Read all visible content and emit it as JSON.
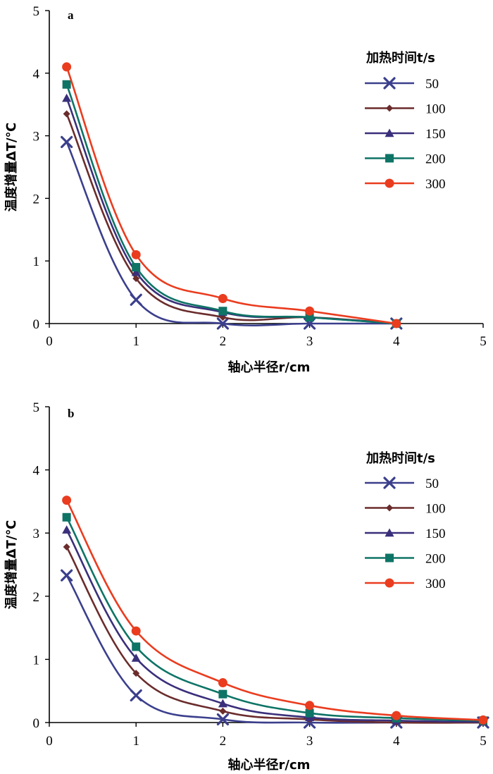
{
  "chart_data": [
    {
      "type": "line",
      "panel_label": "a",
      "xlabel": "轴心半径r/cm",
      "ylabel": "温度增量ΔT/℃",
      "xlim": [
        0,
        5
      ],
      "ylim": [
        0,
        5
      ],
      "xticks": [
        "0",
        "1",
        "2",
        "3",
        "4",
        "5"
      ],
      "yticks": [
        "0",
        "1",
        "2",
        "3",
        "4",
        "5"
      ],
      "grid": false,
      "legend_title": "加热时间t/s",
      "legend_position": "right",
      "x": [
        0.2,
        1,
        2,
        3,
        4
      ],
      "series": [
        {
          "name": "50",
          "color": "#3b3f8c",
          "marker": "x",
          "values": [
            2.9,
            0.38,
            0.0,
            0.0,
            0.0
          ]
        },
        {
          "name": "100",
          "color": "#6b2c2c",
          "marker": "diamond",
          "values": [
            3.35,
            0.72,
            0.1,
            0.1,
            0.0
          ]
        },
        {
          "name": "150",
          "color": "#3a2f7a",
          "marker": "triangle",
          "values": [
            3.6,
            0.82,
            0.18,
            0.1,
            0.0
          ]
        },
        {
          "name": "200",
          "color": "#0e7466",
          "marker": "square",
          "values": [
            3.82,
            0.9,
            0.2,
            0.1,
            0.0
          ]
        },
        {
          "name": "300",
          "color": "#ea3c1f",
          "marker": "circle",
          "values": [
            4.1,
            1.1,
            0.4,
            0.2,
            0.0
          ]
        }
      ]
    },
    {
      "type": "line",
      "panel_label": "b",
      "xlabel": "轴心半径r/cm",
      "ylabel": "温度增量ΔT/℃",
      "xlim": [
        0,
        5
      ],
      "ylim": [
        0,
        5
      ],
      "xticks": [
        "0",
        "1",
        "2",
        "3",
        "4",
        "5"
      ],
      "yticks": [
        "0",
        "1",
        "2",
        "3",
        "4",
        "5"
      ],
      "grid": false,
      "legend_title": "加热时间t/s",
      "legend_position": "right",
      "x": [
        0.2,
        1,
        2,
        3,
        4,
        5
      ],
      "series": [
        {
          "name": "50",
          "color": "#3b3f8c",
          "marker": "x",
          "values": [
            2.33,
            0.43,
            0.05,
            0.0,
            0.0,
            0.0
          ]
        },
        {
          "name": "100",
          "color": "#6b2c2c",
          "marker": "diamond",
          "values": [
            2.78,
            0.78,
            0.18,
            0.05,
            0.0,
            0.0
          ]
        },
        {
          "name": "150",
          "color": "#3a2f7a",
          "marker": "triangle",
          "values": [
            3.05,
            1.02,
            0.3,
            0.08,
            0.03,
            0.01
          ]
        },
        {
          "name": "200",
          "color": "#0e7466",
          "marker": "square",
          "values": [
            3.25,
            1.2,
            0.45,
            0.15,
            0.07,
            0.03
          ]
        },
        {
          "name": "300",
          "color": "#ea3c1f",
          "marker": "circle",
          "values": [
            3.52,
            1.45,
            0.63,
            0.27,
            0.11,
            0.04
          ]
        }
      ]
    }
  ]
}
